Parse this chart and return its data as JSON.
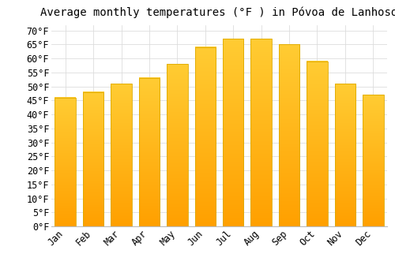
{
  "title": "Average monthly temperatures (°F ) in Póvoa de Lanhoso",
  "months": [
    "Jan",
    "Feb",
    "Mar",
    "Apr",
    "May",
    "Jun",
    "Jul",
    "Aug",
    "Sep",
    "Oct",
    "Nov",
    "Dec"
  ],
  "values": [
    46,
    48,
    51,
    53,
    58,
    64,
    67,
    67,
    65,
    59,
    51,
    47
  ],
  "bar_color_top": "#FFCC33",
  "bar_color_bottom": "#FFA000",
  "bar_edge_color": "#DDAA00",
  "background_color": "#FFFFFF",
  "grid_color": "#DDDDDD",
  "yticks": [
    0,
    5,
    10,
    15,
    20,
    25,
    30,
    35,
    40,
    45,
    50,
    55,
    60,
    65,
    70
  ],
  "ylim": [
    0,
    72
  ],
  "title_fontsize": 10,
  "tick_fontsize": 8.5,
  "title_font": "monospace",
  "bar_width": 0.75
}
